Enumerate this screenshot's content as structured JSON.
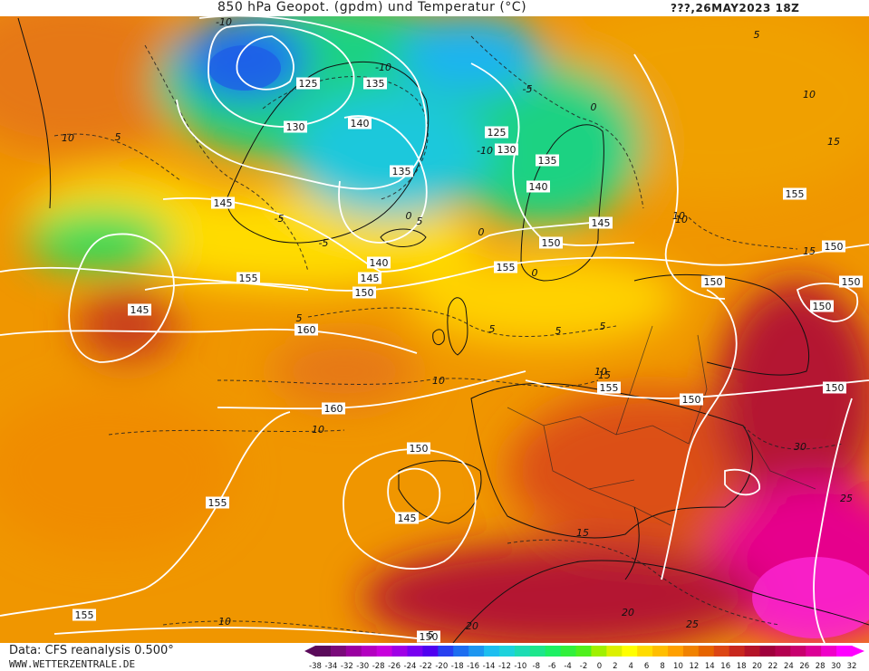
{
  "header": {
    "title": "850 hPa Geopot. (gpdm) und Temperatur (°C)",
    "valid_time": "???,26MAY2023 18Z"
  },
  "footer": {
    "data_source": "Data: CFS reanalysis 0.500°",
    "website": "WWW.WETTERZENTRALE.DE"
  },
  "legend": {
    "unit": "°C",
    "ticks": [
      "-38",
      "-34",
      "-32",
      "-30",
      "-28",
      "-26",
      "-24",
      "-22",
      "-20",
      "-18",
      "-16",
      "-14",
      "-12",
      "-10",
      "-8",
      "-6",
      "-4",
      "-2",
      "0",
      "2",
      "4",
      "6",
      "8",
      "10",
      "12",
      "14",
      "16",
      "18",
      "20",
      "22",
      "24",
      "26",
      "28",
      "30",
      "32"
    ],
    "colors": [
      "#5a0a5a",
      "#7a0a7a",
      "#9a00a0",
      "#b400c0",
      "#c800dc",
      "#a000e6",
      "#7800f0",
      "#5000f0",
      "#2840f0",
      "#1e6ef0",
      "#1e96f0",
      "#1ebef0",
      "#1ed2dc",
      "#1edcb4",
      "#1ee68c",
      "#1ef064",
      "#32f03c",
      "#50f01e",
      "#a0f000",
      "#dcf000",
      "#ffff00",
      "#ffdc00",
      "#ffbe00",
      "#ffa000",
      "#f08200",
      "#e66400",
      "#dc4614",
      "#c8281e",
      "#b41428",
      "#a0003c",
      "#b40050",
      "#c8006e",
      "#dc0096",
      "#f000c8",
      "#ff00ff"
    ]
  },
  "map": {
    "geopotential_labels": [
      {
        "text": "125"
      },
      {
        "text": "135"
      },
      {
        "text": "130"
      },
      {
        "text": "140"
      },
      {
        "text": "125"
      },
      {
        "text": "130"
      },
      {
        "text": "135"
      },
      {
        "text": "135"
      },
      {
        "text": "140"
      },
      {
        "text": "145"
      },
      {
        "text": "145"
      },
      {
        "text": "150"
      },
      {
        "text": "140"
      },
      {
        "text": "145"
      },
      {
        "text": "155"
      },
      {
        "text": "150"
      },
      {
        "text": "155"
      },
      {
        "text": "145"
      },
      {
        "text": "150"
      },
      {
        "text": "160"
      },
      {
        "text": "155"
      },
      {
        "text": "150"
      },
      {
        "text": "160"
      },
      {
        "text": "150"
      },
      {
        "text": "150"
      },
      {
        "text": "155"
      },
      {
        "text": "150"
      },
      {
        "text": "150"
      },
      {
        "text": "145"
      },
      {
        "text": "155"
      },
      {
        "text": "155"
      },
      {
        "text": "150"
      },
      {
        "text": "150"
      }
    ],
    "temperature_labels": [
      {
        "text": "-10"
      },
      {
        "text": "-10"
      },
      {
        "text": "-5"
      },
      {
        "text": "10"
      },
      {
        "text": "5"
      },
      {
        "text": "-10"
      },
      {
        "text": "0"
      },
      {
        "text": "-5"
      },
      {
        "text": "-5"
      },
      {
        "text": "0"
      },
      {
        "text": "5"
      },
      {
        "text": "0"
      },
      {
        "text": "5"
      },
      {
        "text": "0"
      },
      {
        "text": "5"
      },
      {
        "text": "10"
      },
      {
        "text": "5"
      },
      {
        "text": "10"
      },
      {
        "text": "15"
      },
      {
        "text": "10"
      },
      {
        "text": "15"
      },
      {
        "text": "10"
      },
      {
        "text": "5"
      },
      {
        "text": "10"
      },
      {
        "text": "15"
      },
      {
        "text": "20"
      },
      {
        "text": "20"
      },
      {
        "text": "25"
      },
      {
        "text": "30"
      },
      {
        "text": "25"
      },
      {
        "text": "15"
      },
      {
        "text": "10"
      },
      {
        "text": "5"
      },
      {
        "text": "10"
      },
      {
        "text": "5"
      }
    ]
  }
}
